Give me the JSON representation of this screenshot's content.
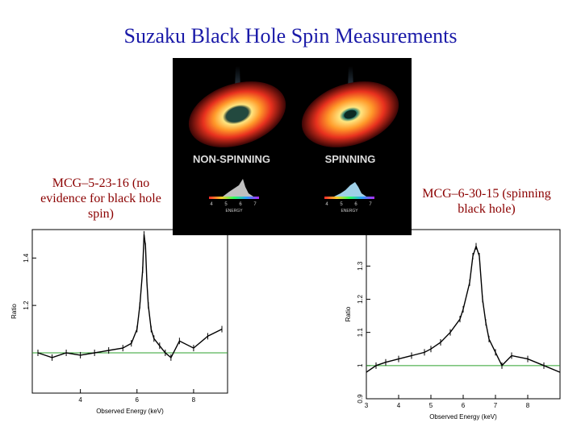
{
  "slide": {
    "title": "Suzaku Black Hole Spin Measurements",
    "caption_left": "MCG–5-23-16 (no evidence for black hole spin)",
    "caption_right": "MCG–6-30-15 (spinning black hole)"
  },
  "artwork": {
    "label_left": "NON-SPINNING",
    "label_right": "SPINNING",
    "energy_label": "ENERGY",
    "energy_ticks": [
      "4",
      "5",
      "6",
      "7"
    ]
  },
  "chart_data": [
    {
      "type": "line",
      "name": "MCG–5-23-16",
      "xlabel": "Observed Energy (keV)",
      "ylabel": "Ratio",
      "xlim": [
        2.3,
        9.2
      ],
      "ylim": [
        0.83,
        1.52
      ],
      "xticks": [
        4,
        6,
        8
      ],
      "yticks": [
        1.2,
        1.4
      ],
      "unity_line": 1.0,
      "x": [
        2.5,
        3.0,
        3.5,
        4.0,
        4.5,
        5.0,
        5.5,
        5.8,
        6.0,
        6.1,
        6.2,
        6.25,
        6.3,
        6.35,
        6.4,
        6.5,
        6.6,
        6.8,
        7.0,
        7.2,
        7.5,
        8.0,
        8.5,
        9.0
      ],
      "y": [
        1.0,
        0.98,
        1.0,
        0.99,
        1.0,
        1.01,
        1.02,
        1.04,
        1.1,
        1.2,
        1.35,
        1.5,
        1.45,
        1.3,
        1.2,
        1.1,
        1.06,
        1.03,
        1.0,
        0.98,
        1.05,
        1.02,
        1.07,
        1.1
      ],
      "color": "#000000",
      "unity_color": "#2ca02c"
    },
    {
      "type": "line",
      "name": "MCG–6-30-15",
      "xlabel": "Observed Energy (keV)",
      "ylabel": "Ratio",
      "xlim": [
        3.0,
        9.0
      ],
      "ylim": [
        0.9,
        1.41
      ],
      "xticks": [
        3,
        4,
        5,
        6,
        7,
        8
      ],
      "yticks": [
        0.9,
        1,
        1.1,
        1.2,
        1.3
      ],
      "unity_line": 1.0,
      "x": [
        3.0,
        3.3,
        3.6,
        4.0,
        4.4,
        4.8,
        5.0,
        5.3,
        5.6,
        5.9,
        6.0,
        6.2,
        6.3,
        6.4,
        6.5,
        6.6,
        6.7,
        6.8,
        7.0,
        7.2,
        7.5,
        8.0,
        8.5,
        9.0
      ],
      "y": [
        0.98,
        1.0,
        1.01,
        1.02,
        1.03,
        1.04,
        1.05,
        1.07,
        1.1,
        1.14,
        1.17,
        1.25,
        1.33,
        1.36,
        1.33,
        1.2,
        1.13,
        1.08,
        1.04,
        1.0,
        1.03,
        1.02,
        1.0,
        0.98
      ],
      "color": "#000000",
      "unity_color": "#2ca02c"
    }
  ]
}
